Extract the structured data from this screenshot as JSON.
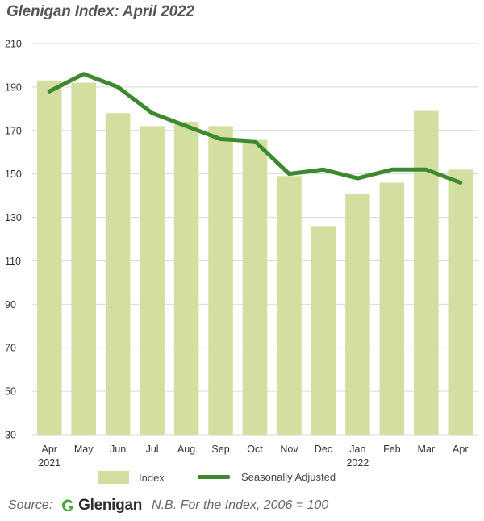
{
  "title": "Glenigan Index: April 2022",
  "legend": {
    "index_label": "Index",
    "sa_label": "Seasonally Adjusted"
  },
  "footer": {
    "source_label": "Source:",
    "brand": "Glenigan",
    "note": "N.B. For the Index, 2006 = 100"
  },
  "colors": {
    "bar": "#d3dfa0",
    "line": "#3d8a2e",
    "grid": "#d9d9d9",
    "brand_green": "#4aa83b"
  },
  "chart_data": {
    "type": "bar",
    "title": "Glenigan Index: April 2022",
    "categories": [
      "Apr",
      "May",
      "Jun",
      "Jul",
      "Aug",
      "Sep",
      "Oct",
      "Nov",
      "Dec",
      "Jan",
      "Feb",
      "Mar",
      "Apr"
    ],
    "year_labels": [
      "2021",
      "",
      "",
      "",
      "",
      "",
      "",
      "",
      "",
      "2022",
      "",
      "",
      ""
    ],
    "series": [
      {
        "name": "Index",
        "type": "bar",
        "values": [
          193,
          192,
          178,
          172,
          174,
          172,
          166,
          149,
          126,
          141,
          146,
          179,
          152
        ]
      },
      {
        "name": "Seasonally Adjusted",
        "type": "line",
        "values": [
          188,
          196,
          190,
          178,
          172,
          166,
          165,
          150,
          152,
          148,
          152,
          152,
          146
        ]
      }
    ],
    "ylim": [
      30,
      210
    ],
    "yticks": [
      30,
      50,
      70,
      90,
      110,
      130,
      150,
      170,
      190,
      210
    ],
    "grid": true,
    "legend_position": "bottom"
  }
}
